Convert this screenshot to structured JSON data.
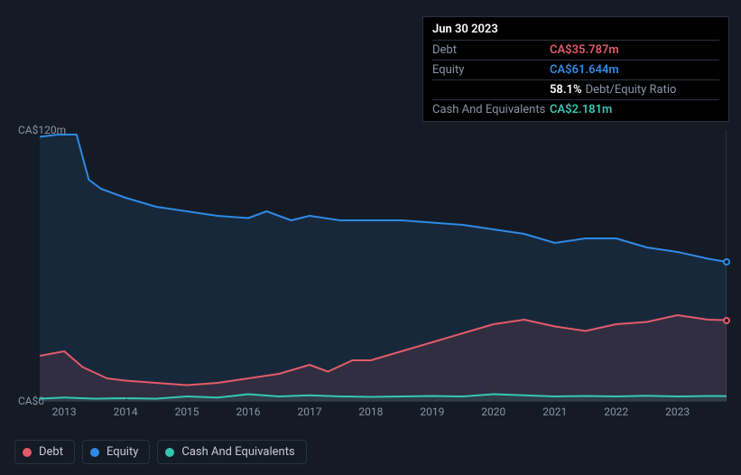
{
  "tooltip": {
    "date": "Jun 30 2023",
    "rows": [
      {
        "label": "Debt",
        "value": "CA$35.787m",
        "color": "#e25b6a"
      },
      {
        "label": "Equity",
        "value": "CA$61.644m",
        "color": "#2e8ae6"
      },
      {
        "label": "",
        "value": "58.1%",
        "suffix": "Debt/Equity Ratio",
        "color": "#ffffff"
      },
      {
        "label": "Cash And Equivalents",
        "value": "CA$2.181m",
        "color": "#35c7b4"
      }
    ]
  },
  "chart": {
    "type": "area",
    "background_color": "#151b24",
    "grid_color": "#2a3240",
    "text_color": "#8a94a6",
    "y_ticks": [
      {
        "label": "CA$120m",
        "val": 120
      },
      {
        "label": "CA$0",
        "val": 0
      }
    ],
    "ylim": [
      0,
      120
    ],
    "x_labels": [
      "2013",
      "2014",
      "2015",
      "2016",
      "2017",
      "2018",
      "2019",
      "2020",
      "2021",
      "2022",
      "2023"
    ],
    "x_range_years": [
      2012.6,
      2023.8
    ],
    "series": [
      {
        "name": "Equity",
        "color": "#2e8ae6",
        "fill": "rgba(46,138,230,0.12)",
        "data": [
          [
            2012.6,
            117
          ],
          [
            2012.9,
            118
          ],
          [
            2013.2,
            118
          ],
          [
            2013.4,
            98
          ],
          [
            2013.6,
            94
          ],
          [
            2014.0,
            90
          ],
          [
            2014.5,
            86
          ],
          [
            2015.0,
            84
          ],
          [
            2015.5,
            82
          ],
          [
            2016.0,
            81
          ],
          [
            2016.3,
            84
          ],
          [
            2016.7,
            80
          ],
          [
            2017.0,
            82
          ],
          [
            2017.5,
            80
          ],
          [
            2018.0,
            80
          ],
          [
            2018.5,
            80
          ],
          [
            2019.0,
            79
          ],
          [
            2019.5,
            78
          ],
          [
            2020.0,
            76
          ],
          [
            2020.5,
            74
          ],
          [
            2021.0,
            70
          ],
          [
            2021.5,
            72
          ],
          [
            2022.0,
            72
          ],
          [
            2022.5,
            68
          ],
          [
            2023.0,
            66
          ],
          [
            2023.5,
            63
          ],
          [
            2023.8,
            61.6
          ]
        ]
      },
      {
        "name": "Debt",
        "color": "#e25b6a",
        "fill": "rgba(226,91,106,0.12)",
        "data": [
          [
            2012.6,
            20
          ],
          [
            2013.0,
            22
          ],
          [
            2013.3,
            15
          ],
          [
            2013.7,
            10
          ],
          [
            2014.0,
            9
          ],
          [
            2014.5,
            8
          ],
          [
            2015.0,
            7
          ],
          [
            2015.5,
            8
          ],
          [
            2016.0,
            10
          ],
          [
            2016.5,
            12
          ],
          [
            2017.0,
            16
          ],
          [
            2017.3,
            13
          ],
          [
            2017.7,
            18
          ],
          [
            2018.0,
            18
          ],
          [
            2018.5,
            22
          ],
          [
            2019.0,
            26
          ],
          [
            2019.5,
            30
          ],
          [
            2020.0,
            34
          ],
          [
            2020.5,
            36
          ],
          [
            2021.0,
            33
          ],
          [
            2021.5,
            31
          ],
          [
            2022.0,
            34
          ],
          [
            2022.5,
            35
          ],
          [
            2023.0,
            38
          ],
          [
            2023.5,
            36
          ],
          [
            2023.8,
            35.8
          ]
        ]
      },
      {
        "name": "Cash And Equivalents",
        "color": "#35c7b4",
        "fill": "rgba(53,199,180,0.10)",
        "data": [
          [
            2012.6,
            1
          ],
          [
            2013.0,
            1.5
          ],
          [
            2013.5,
            1
          ],
          [
            2014.0,
            1.2
          ],
          [
            2014.5,
            1
          ],
          [
            2015.0,
            2
          ],
          [
            2015.5,
            1.5
          ],
          [
            2016.0,
            3
          ],
          [
            2016.5,
            2
          ],
          [
            2017.0,
            2.5
          ],
          [
            2017.5,
            2
          ],
          [
            2018.0,
            1.8
          ],
          [
            2018.5,
            2
          ],
          [
            2019.0,
            2.2
          ],
          [
            2019.5,
            2
          ],
          [
            2020.0,
            3
          ],
          [
            2020.5,
            2.5
          ],
          [
            2021.0,
            2
          ],
          [
            2021.5,
            2.2
          ],
          [
            2022.0,
            2
          ],
          [
            2022.5,
            2.3
          ],
          [
            2023.0,
            2
          ],
          [
            2023.5,
            2.2
          ],
          [
            2023.8,
            2.18
          ]
        ]
      }
    ],
    "end_markers": [
      {
        "series": "Equity",
        "color": "#2e8ae6",
        "x": 2023.8,
        "y": 61.6
      },
      {
        "series": "Debt",
        "color": "#e25b6a",
        "x": 2023.8,
        "y": 35.8
      }
    ]
  },
  "legend": {
    "items": [
      {
        "label": "Debt",
        "color": "#e25b6a"
      },
      {
        "label": "Equity",
        "color": "#2e8ae6"
      },
      {
        "label": "Cash And Equivalents",
        "color": "#35c7b4"
      }
    ]
  }
}
